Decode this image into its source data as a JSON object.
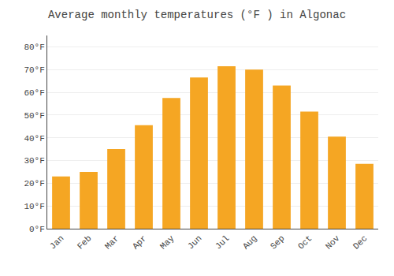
{
  "chart_data": {
    "type": "bar",
    "title": "Average monthly temperatures (°F ) in Algonac",
    "categories": [
      "Jan",
      "Feb",
      "Mar",
      "Apr",
      "May",
      "Jun",
      "Jul",
      "Aug",
      "Sep",
      "Oct",
      "Nov",
      "Dec"
    ],
    "values": [
      23,
      25,
      35,
      45.5,
      57.5,
      66.5,
      71.5,
      70,
      63,
      51.5,
      40.5,
      28.5
    ],
    "color": "#F5A623",
    "ylim": [
      0,
      85
    ],
    "yticks": [
      {
        "value": 0,
        "label": "0°F"
      },
      {
        "value": 10,
        "label": "10°F"
      },
      {
        "value": 20,
        "label": "20°F"
      },
      {
        "value": 30,
        "label": "30°F"
      },
      {
        "value": 40,
        "label": "40°F"
      },
      {
        "value": 50,
        "label": "50°F"
      },
      {
        "value": 60,
        "label": "60°F"
      },
      {
        "value": 70,
        "label": "70°F"
      },
      {
        "value": 80,
        "label": "80°F"
      }
    ],
    "grid": true
  }
}
